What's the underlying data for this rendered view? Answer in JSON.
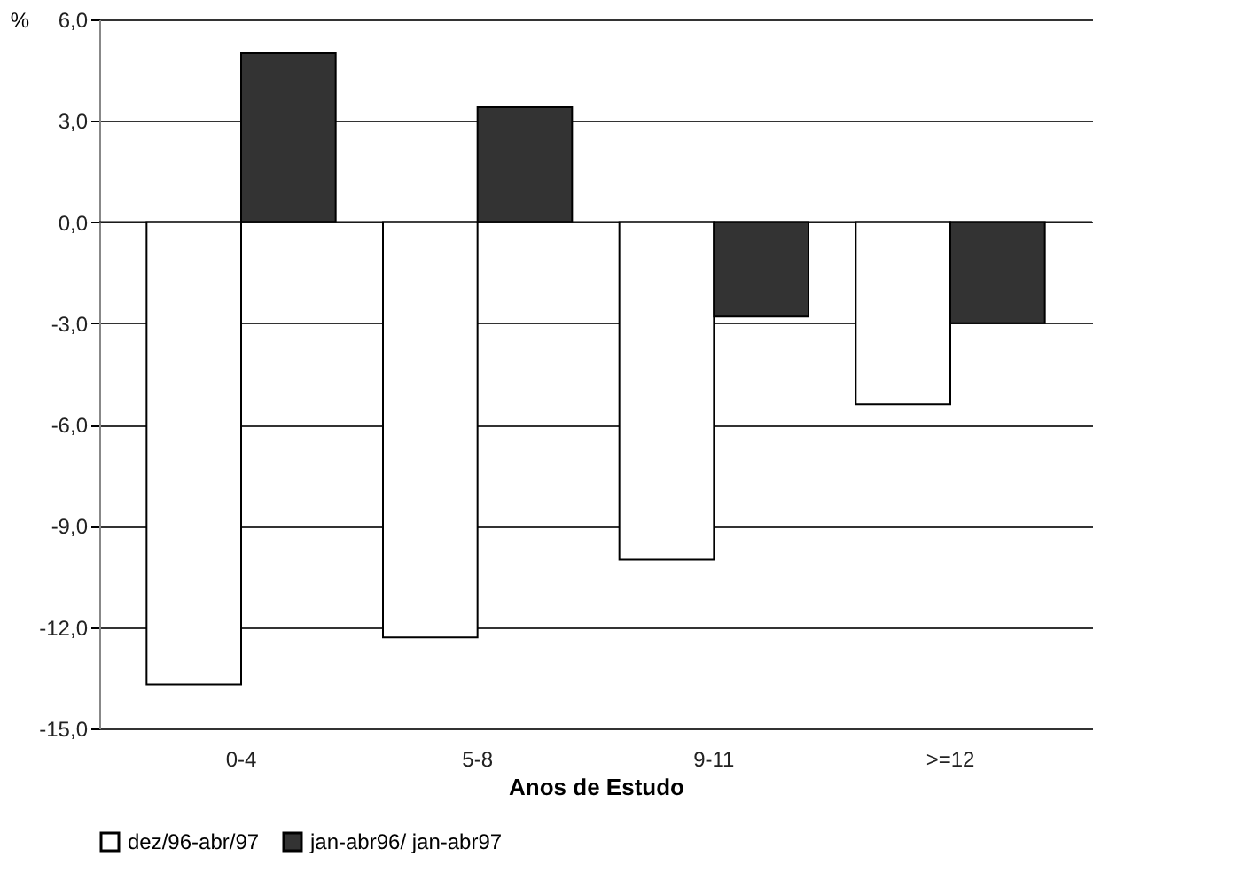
{
  "chart_data": {
    "type": "bar",
    "xlabel": "Anos de Estudo",
    "ylabel": "%",
    "categories": [
      "0-4",
      "5-8",
      "9-11",
      ">=12"
    ],
    "series": [
      {
        "name": "dez/96-abr/97",
        "color": "#ffffff",
        "values": [
          -13.7,
          -12.3,
          -10.0,
          -5.4
        ]
      },
      {
        "name": "jan-abr96/ jan-abr97",
        "color": "#333333",
        "values": [
          5.0,
          3.4,
          -2.8,
          -3.0
        ]
      }
    ],
    "ylim": [
      -15,
      6
    ],
    "yticks": [
      {
        "value": -15,
        "label": "-15,0"
      },
      {
        "value": -12,
        "label": "-12,0"
      },
      {
        "value": -9,
        "label": "-9,0"
      },
      {
        "value": -6,
        "label": "-6,0"
      },
      {
        "value": -3,
        "label": "-3,0"
      },
      {
        "value": 0,
        "label": "0,0"
      },
      {
        "value": 3,
        "label": "3,0"
      },
      {
        "value": 6,
        "label": "6,0"
      }
    ],
    "grid": "y",
    "legend": "bottom"
  }
}
